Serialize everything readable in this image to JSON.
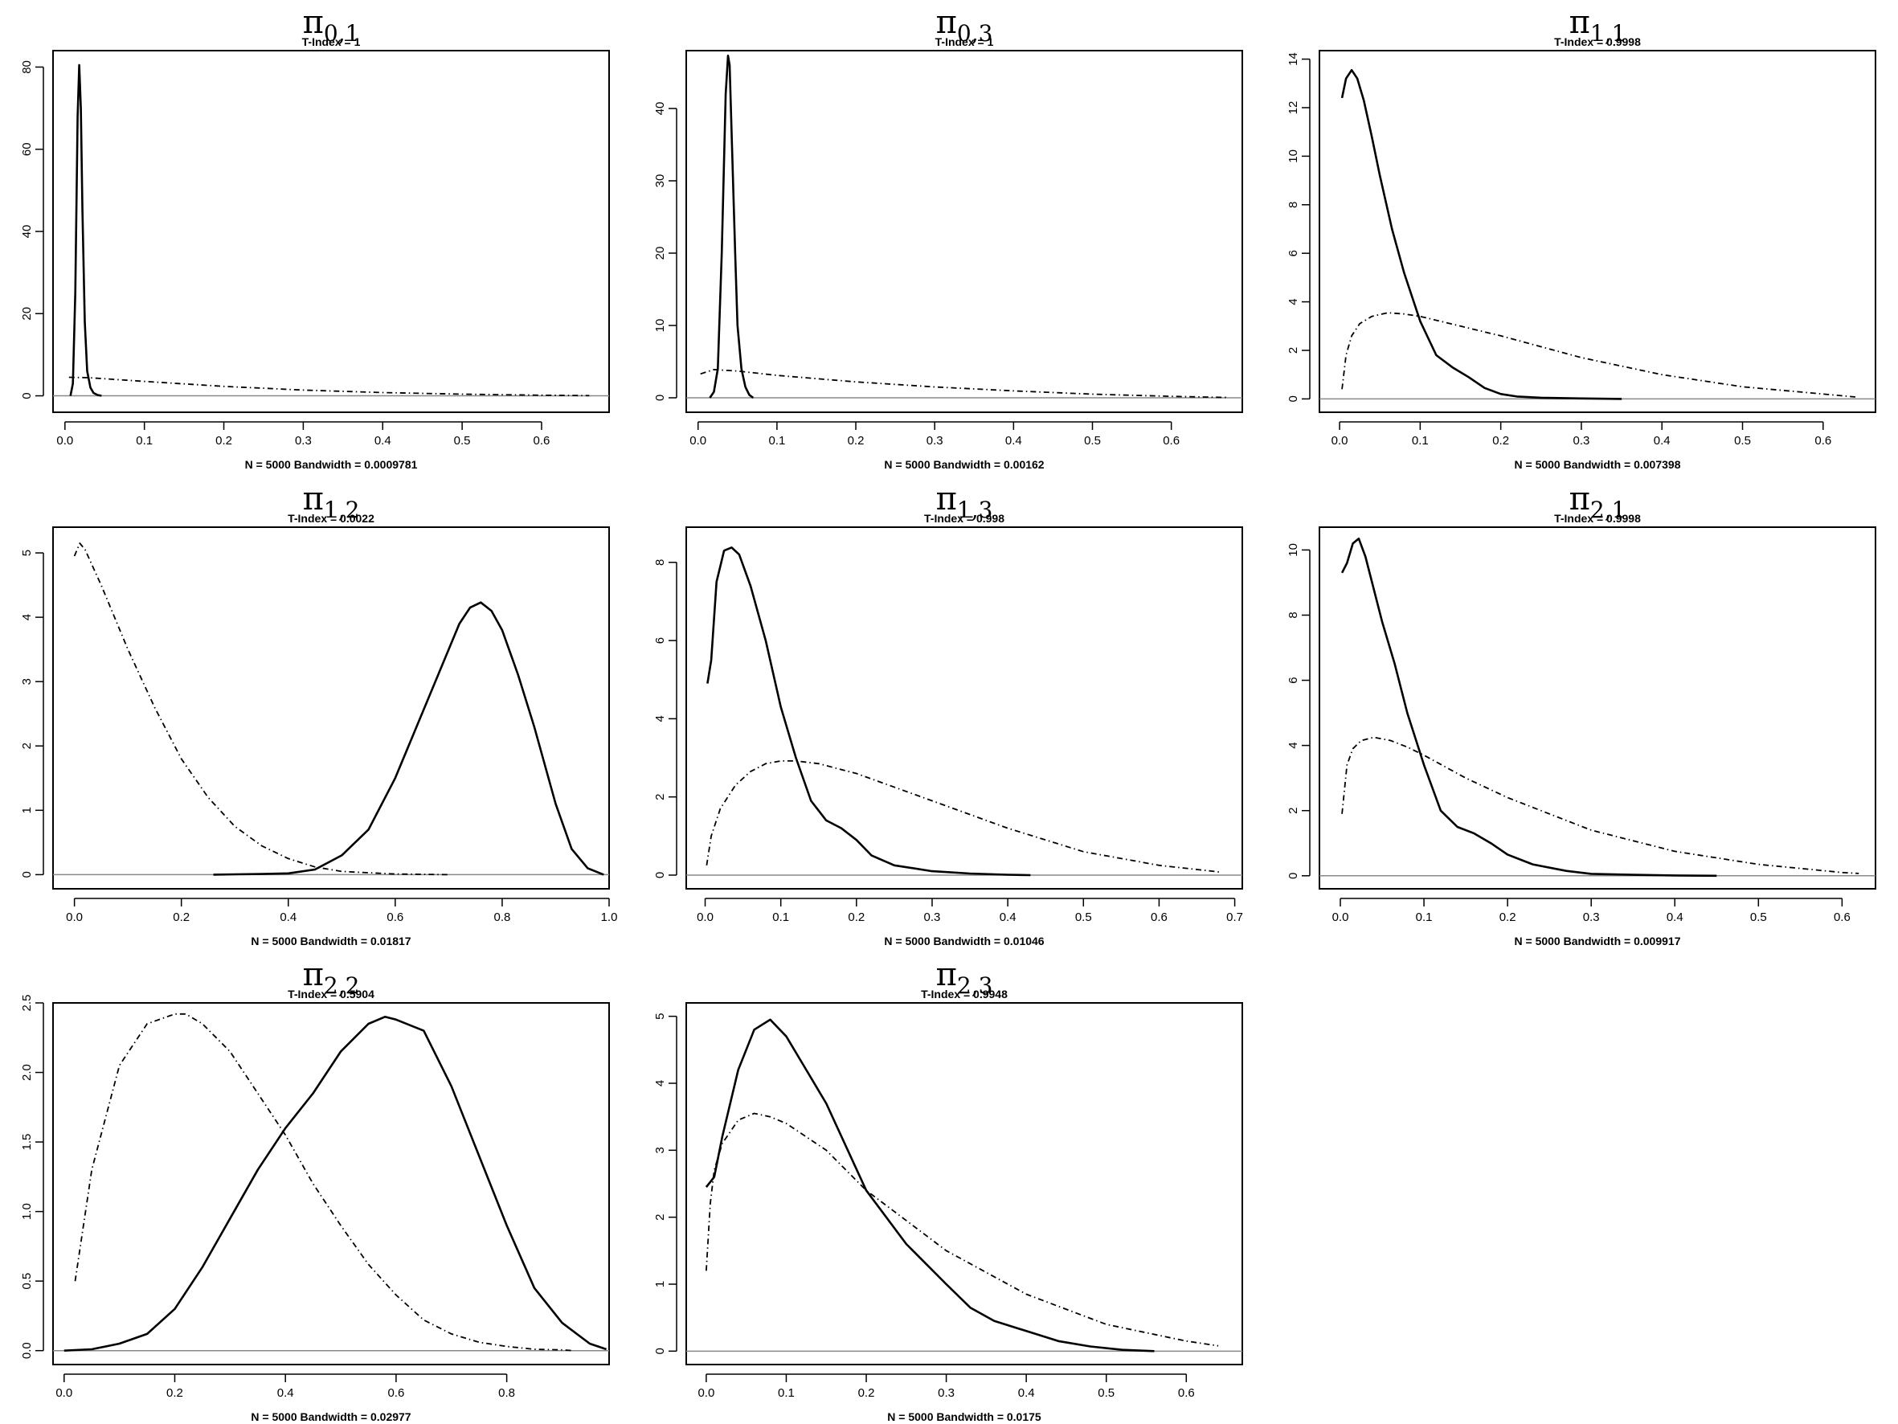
{
  "chart_data": [
    {
      "type": "line",
      "title": "π0,1",
      "subtitle": "T-Index = 1",
      "xlabel": "N = 5000   Bandwidth = 0.0009781",
      "xlim": [
        -0.015,
        0.685
      ],
      "ylim": [
        -4,
        84
      ],
      "xticks": [
        0,
        0.1,
        0.2,
        0.3,
        0.4,
        0.5,
        0.6
      ],
      "xtick_labels": [
        "0.0",
        "0.1",
        "0.2",
        "0.3",
        "0.4",
        "0.5",
        "0.6"
      ],
      "yticks": [
        0,
        20,
        40,
        60,
        80
      ],
      "ytick_labels": [
        "0",
        "20",
        "40",
        "60",
        "80"
      ],
      "series": [
        {
          "style": "solid",
          "x": [
            0.007,
            0.01,
            0.013,
            0.016,
            0.018,
            0.02,
            0.022,
            0.025,
            0.028,
            0.032,
            0.036,
            0.041,
            0.046
          ],
          "y": [
            0,
            3,
            25,
            68,
            80.5,
            70,
            45,
            18,
            6,
            2,
            0.7,
            0.2,
            0
          ]
        },
        {
          "style": "dashdot",
          "x": [
            0.005,
            0.03,
            0.1,
            0.2,
            0.3,
            0.4,
            0.5,
            0.6,
            0.66
          ],
          "y": [
            4.5,
            4.4,
            3.5,
            2.3,
            1.4,
            0.8,
            0.4,
            0.15,
            0.05
          ]
        }
      ]
    },
    {
      "type": "line",
      "title": "π0,3",
      "subtitle": "T-Index = 1",
      "xlabel": "N = 5000   Bandwidth = 0.00162",
      "xlim": [
        -0.015,
        0.69
      ],
      "ylim": [
        -2,
        48
      ],
      "xticks": [
        0,
        0.1,
        0.2,
        0.3,
        0.4,
        0.5,
        0.6
      ],
      "xtick_labels": [
        "0.0",
        "0.1",
        "0.2",
        "0.3",
        "0.4",
        "0.5",
        "0.6"
      ],
      "yticks": [
        0,
        10,
        20,
        30,
        40
      ],
      "ytick_labels": [
        "0",
        "10",
        "20",
        "30",
        "40"
      ],
      "series": [
        {
          "style": "solid",
          "x": [
            0.015,
            0.02,
            0.025,
            0.03,
            0.035,
            0.038,
            0.04,
            0.043,
            0.047,
            0.05,
            0.055,
            0.06,
            0.065,
            0.07
          ],
          "y": [
            0,
            0.8,
            4,
            20,
            42,
            47.3,
            46,
            35,
            20,
            10,
            4,
            1.5,
            0.4,
            0
          ]
        },
        {
          "style": "dashdot",
          "x": [
            0.003,
            0.02,
            0.05,
            0.1,
            0.2,
            0.3,
            0.4,
            0.5,
            0.6,
            0.67
          ],
          "y": [
            3.3,
            3.9,
            3.7,
            3.1,
            2.2,
            1.5,
            0.95,
            0.5,
            0.2,
            0.05
          ]
        }
      ]
    },
    {
      "type": "line",
      "title": "π1,1",
      "subtitle": "T-Index = 0.9998",
      "xlabel": "N = 5000   Bandwidth = 0.007398",
      "xlim": [
        -0.025,
        0.665
      ],
      "ylim": [
        -0.55,
        14.35
      ],
      "xticks": [
        0,
        0.1,
        0.2,
        0.3,
        0.4,
        0.5,
        0.6
      ],
      "xtick_labels": [
        "0.0",
        "0.1",
        "0.2",
        "0.3",
        "0.4",
        "0.5",
        "0.6"
      ],
      "yticks": [
        0,
        2,
        4,
        6,
        8,
        10,
        12,
        14
      ],
      "ytick_labels": [
        "0",
        "2",
        "4",
        "6",
        "8",
        "10",
        "12",
        "14"
      ],
      "series": [
        {
          "style": "solid",
          "x": [
            0.003,
            0.008,
            0.015,
            0.022,
            0.03,
            0.04,
            0.05,
            0.065,
            0.08,
            0.1,
            0.12,
            0.14,
            0.16,
            0.18,
            0.2,
            0.22,
            0.25,
            0.3,
            0.35
          ],
          "y": [
            12.4,
            13.2,
            13.55,
            13.2,
            12.3,
            10.8,
            9.2,
            7.0,
            5.2,
            3.2,
            1.8,
            1.3,
            0.9,
            0.45,
            0.2,
            0.1,
            0.05,
            0.02,
            0
          ]
        },
        {
          "style": "dashdot",
          "x": [
            0.003,
            0.008,
            0.015,
            0.025,
            0.04,
            0.06,
            0.08,
            0.1,
            0.15,
            0.2,
            0.3,
            0.4,
            0.5,
            0.6,
            0.64
          ],
          "y": [
            0.4,
            1.8,
            2.6,
            3.1,
            3.4,
            3.55,
            3.5,
            3.4,
            3.0,
            2.6,
            1.7,
            1.0,
            0.5,
            0.2,
            0.08
          ]
        }
      ]
    },
    {
      "type": "line",
      "title": "π1,2",
      "subtitle": "T-Index = 0.0022",
      "xlabel": "N = 5000   Bandwidth = 0.01817",
      "xlim": [
        -0.04,
        1.0
      ],
      "ylim": [
        -0.22,
        5.4
      ],
      "xticks": [
        0,
        0.2,
        0.4,
        0.6,
        0.8,
        1.0
      ],
      "xtick_labels": [
        "0.0",
        "0.2",
        "0.4",
        "0.6",
        "0.8",
        "1.0"
      ],
      "yticks": [
        0,
        1,
        2,
        3,
        4,
        5
      ],
      "ytick_labels": [
        "0",
        "1",
        "2",
        "3",
        "4",
        "5"
      ],
      "series": [
        {
          "style": "solid",
          "x": [
            0.26,
            0.3,
            0.35,
            0.4,
            0.45,
            0.5,
            0.55,
            0.6,
            0.65,
            0.7,
            0.72,
            0.74,
            0.76,
            0.78,
            0.8,
            0.83,
            0.86,
            0.9,
            0.93,
            0.96,
            0.99
          ],
          "y": [
            0,
            0.005,
            0.01,
            0.02,
            0.08,
            0.3,
            0.7,
            1.5,
            2.5,
            3.5,
            3.9,
            4.15,
            4.23,
            4.1,
            3.8,
            3.1,
            2.3,
            1.1,
            0.4,
            0.1,
            0
          ]
        },
        {
          "style": "dashdot",
          "x": [
            0.0,
            0.01,
            0.02,
            0.05,
            0.1,
            0.15,
            0.2,
            0.25,
            0.3,
            0.35,
            0.4,
            0.45,
            0.5,
            0.6,
            0.7
          ],
          "y": [
            4.95,
            5.15,
            5.05,
            4.5,
            3.5,
            2.6,
            1.8,
            1.2,
            0.75,
            0.45,
            0.25,
            0.12,
            0.05,
            0.01,
            0
          ]
        }
      ]
    },
    {
      "type": "line",
      "title": "π1,3",
      "subtitle": "T-Index = 0.998",
      "xlabel": "N = 5000   Bandwidth = 0.01046",
      "xlim": [
        -0.025,
        0.71
      ],
      "ylim": [
        -0.35,
        8.9
      ],
      "xticks": [
        0,
        0.1,
        0.2,
        0.3,
        0.4,
        0.5,
        0.6,
        0.7
      ],
      "xtick_labels": [
        "0.0",
        "0.1",
        "0.2",
        "0.3",
        "0.4",
        "0.5",
        "0.6",
        "0.7"
      ],
      "yticks": [
        0,
        2,
        4,
        6,
        8
      ],
      "ytick_labels": [
        "0",
        "2",
        "4",
        "6",
        "8"
      ],
      "series": [
        {
          "style": "solid",
          "x": [
            0.003,
            0.008,
            0.015,
            0.025,
            0.035,
            0.045,
            0.06,
            0.08,
            0.1,
            0.12,
            0.14,
            0.16,
            0.18,
            0.2,
            0.22,
            0.25,
            0.3,
            0.35,
            0.4,
            0.43
          ],
          "y": [
            4.9,
            5.5,
            7.5,
            8.3,
            8.38,
            8.2,
            7.4,
            6.0,
            4.3,
            3.0,
            1.9,
            1.4,
            1.2,
            0.9,
            0.5,
            0.25,
            0.1,
            0.04,
            0.01,
            0
          ]
        },
        {
          "style": "dashdot",
          "x": [
            0.002,
            0.008,
            0.02,
            0.04,
            0.06,
            0.08,
            0.1,
            0.12,
            0.15,
            0.2,
            0.3,
            0.4,
            0.5,
            0.6,
            0.68
          ],
          "y": [
            0.25,
            1.0,
            1.7,
            2.3,
            2.65,
            2.85,
            2.92,
            2.92,
            2.85,
            2.6,
            1.9,
            1.2,
            0.6,
            0.25,
            0.08
          ]
        }
      ]
    },
    {
      "type": "line",
      "title": "π2,1",
      "subtitle": "T-Index = 0.9998",
      "xlabel": "N = 5000   Bandwidth = 0.009917",
      "xlim": [
        -0.025,
        0.64
      ],
      "ylim": [
        -0.4,
        10.7
      ],
      "xticks": [
        0,
        0.1,
        0.2,
        0.3,
        0.4,
        0.5,
        0.6
      ],
      "xtick_labels": [
        "0.0",
        "0.1",
        "0.2",
        "0.3",
        "0.4",
        "0.5",
        "0.6"
      ],
      "yticks": [
        0,
        2,
        4,
        6,
        8,
        10
      ],
      "ytick_labels": [
        "0",
        "2",
        "4",
        "6",
        "8",
        "10"
      ],
      "series": [
        {
          "style": "solid",
          "x": [
            0.002,
            0.008,
            0.015,
            0.022,
            0.03,
            0.04,
            0.05,
            0.065,
            0.08,
            0.1,
            0.12,
            0.14,
            0.16,
            0.18,
            0.2,
            0.23,
            0.27,
            0.3,
            0.35,
            0.4,
            0.45
          ],
          "y": [
            9.3,
            9.6,
            10.2,
            10.35,
            9.8,
            8.8,
            7.8,
            6.5,
            5.0,
            3.4,
            2.0,
            1.5,
            1.3,
            1.0,
            0.65,
            0.35,
            0.15,
            0.06,
            0.03,
            0.01,
            0
          ]
        },
        {
          "style": "dashdot",
          "x": [
            0.002,
            0.008,
            0.015,
            0.025,
            0.04,
            0.06,
            0.08,
            0.1,
            0.15,
            0.2,
            0.3,
            0.4,
            0.5,
            0.6,
            0.62
          ],
          "y": [
            1.9,
            3.4,
            3.9,
            4.15,
            4.25,
            4.15,
            3.95,
            3.7,
            3.0,
            2.4,
            1.4,
            0.75,
            0.35,
            0.1,
            0.07
          ]
        }
      ]
    },
    {
      "type": "line",
      "title": "π2,2",
      "subtitle": "T-Index = 0.5904",
      "xlabel": "N = 5000   Bandwidth = 0.02977",
      "xlim": [
        -0.02,
        0.985
      ],
      "ylim": [
        -0.1,
        2.5
      ],
      "xticks": [
        0,
        0.2,
        0.4,
        0.6,
        0.8
      ],
      "xtick_labels": [
        "0.0",
        "0.2",
        "0.4",
        "0.6",
        "0.8"
      ],
      "yticks": [
        0,
        0.5,
        1.0,
        1.5,
        2.0,
        2.5
      ],
      "ytick_labels": [
        "0.0",
        "0.5",
        "1.0",
        "1.5",
        "2.0",
        "2.5"
      ],
      "series": [
        {
          "style": "solid",
          "x": [
            0.0,
            0.05,
            0.1,
            0.15,
            0.2,
            0.25,
            0.3,
            0.35,
            0.4,
            0.45,
            0.5,
            0.55,
            0.58,
            0.6,
            0.65,
            0.7,
            0.75,
            0.8,
            0.85,
            0.9,
            0.95,
            0.98
          ],
          "y": [
            0,
            0.01,
            0.05,
            0.12,
            0.3,
            0.6,
            0.95,
            1.3,
            1.6,
            1.85,
            2.15,
            2.35,
            2.4,
            2.38,
            2.3,
            1.9,
            1.4,
            0.9,
            0.45,
            0.2,
            0.05,
            0.01
          ]
        },
        {
          "style": "dashdot",
          "x": [
            0.02,
            0.05,
            0.1,
            0.15,
            0.2,
            0.22,
            0.25,
            0.3,
            0.35,
            0.4,
            0.45,
            0.5,
            0.55,
            0.6,
            0.65,
            0.7,
            0.75,
            0.8,
            0.85,
            0.9,
            0.92
          ],
          "y": [
            0.5,
            1.3,
            2.05,
            2.35,
            2.42,
            2.42,
            2.35,
            2.15,
            1.85,
            1.55,
            1.2,
            0.9,
            0.62,
            0.4,
            0.22,
            0.12,
            0.06,
            0.03,
            0.01,
            0.005,
            0
          ]
        }
      ]
    },
    {
      "type": "line",
      "title": "π2,3",
      "subtitle": "T-Index = 0.9948",
      "xlabel": "N = 5000   Bandwidth = 0.0175",
      "xlim": [
        -0.025,
        0.67
      ],
      "ylim": [
        -0.2,
        5.2
      ],
      "xticks": [
        0,
        0.1,
        0.2,
        0.3,
        0.4,
        0.5,
        0.6
      ],
      "xtick_labels": [
        "0.0",
        "0.1",
        "0.2",
        "0.3",
        "0.4",
        "0.5",
        "0.6"
      ],
      "yticks": [
        0,
        1,
        2,
        3,
        4,
        5
      ],
      "ytick_labels": [
        "0",
        "1",
        "2",
        "3",
        "4",
        "5"
      ],
      "series": [
        {
          "style": "solid",
          "x": [
            0.0,
            0.01,
            0.02,
            0.04,
            0.06,
            0.08,
            0.1,
            0.12,
            0.15,
            0.2,
            0.25,
            0.3,
            0.33,
            0.36,
            0.4,
            0.44,
            0.48,
            0.52,
            0.56
          ],
          "y": [
            2.45,
            2.6,
            3.2,
            4.2,
            4.8,
            4.95,
            4.7,
            4.3,
            3.7,
            2.4,
            1.6,
            1.0,
            0.65,
            0.45,
            0.3,
            0.15,
            0.07,
            0.02,
            0
          ]
        },
        {
          "style": "dashdot",
          "x": [
            0.0,
            0.005,
            0.01,
            0.02,
            0.04,
            0.06,
            0.08,
            0.1,
            0.15,
            0.2,
            0.3,
            0.4,
            0.5,
            0.6,
            0.64
          ],
          "y": [
            1.2,
            2.2,
            2.7,
            3.1,
            3.45,
            3.55,
            3.5,
            3.4,
            3.0,
            2.4,
            1.5,
            0.85,
            0.4,
            0.15,
            0.08
          ]
        }
      ]
    }
  ]
}
